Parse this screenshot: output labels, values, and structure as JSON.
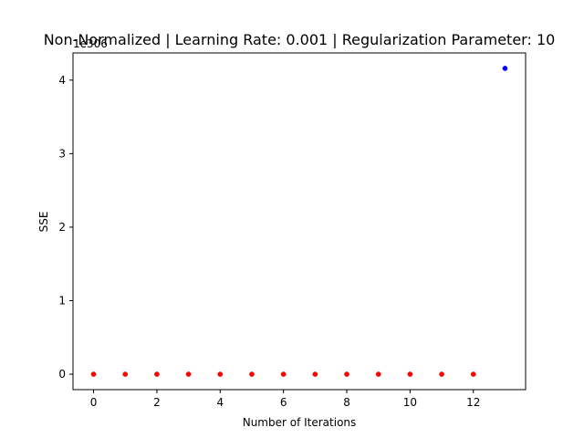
{
  "chart_data": {
    "type": "scatter",
    "title": "Non-Normalized | Learning Rate: 0.001 | Regularization Parameter: 10",
    "xlabel": "Number of Iterations",
    "ylabel": "SSE",
    "y_offset_label": "1e306",
    "xlim": [
      -0.65,
      13.65
    ],
    "ylim": [
      -0.21,
      4.37
    ],
    "xticks": [
      0,
      2,
      4,
      6,
      8,
      10,
      12
    ],
    "yticks": [
      0,
      1,
      2,
      3,
      4
    ],
    "grid": false,
    "series": [
      {
        "color": "#ff0000",
        "x": [
          0,
          1,
          2,
          3,
          4,
          5,
          6,
          7,
          8,
          9,
          10,
          11,
          12
        ],
        "y": [
          0,
          0,
          0,
          0,
          0,
          0,
          0,
          0,
          0,
          0,
          0,
          0,
          0
        ]
      },
      {
        "color": "#0000ff",
        "x": [
          13
        ],
        "y": [
          4.16
        ]
      }
    ]
  }
}
